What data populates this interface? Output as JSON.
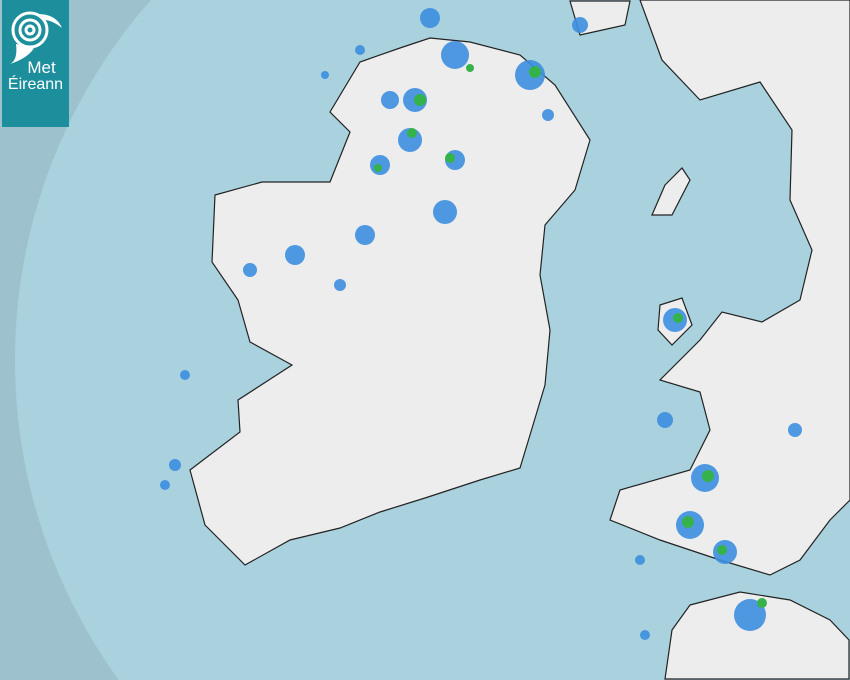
{
  "logo": {
    "line1": "Met",
    "line2": "Éireann"
  },
  "map": {
    "type": "rainfall-radar",
    "colors": {
      "sea_outside_coverage": "#9dc2cd",
      "sea_radar_coverage": "#a9d2de",
      "land": "#eeeeee",
      "rain_light": "#3d8fe0",
      "rain_moderate": "#36b24a",
      "logo_background": "#1d8f9c"
    }
  }
}
